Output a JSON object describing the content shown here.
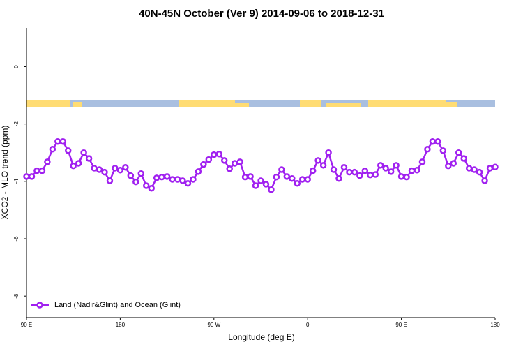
{
  "chart_data": {
    "type": "line",
    "title": "40N-45N October (Ver 9)   2014-09-06 to 2018-12-31",
    "x_label": "Longitude (deg E)",
    "y_label": "XCO2 - MLO trend (ppm)",
    "x": [
      90,
      95,
      100,
      105,
      110,
      115,
      120,
      125,
      130,
      135,
      140,
      145,
      150,
      155,
      160,
      165,
      170,
      175,
      180,
      185,
      190,
      195,
      200,
      205,
      210,
      215,
      220,
      225,
      230,
      235,
      240,
      245,
      250,
      255,
      260,
      265,
      270,
      275,
      280,
      285,
      290,
      295,
      300,
      305,
      310,
      315,
      320,
      325,
      330,
      335,
      340,
      345,
      350,
      355,
      360,
      365,
      370,
      375,
      380,
      385,
      390,
      395,
      400,
      405,
      410,
      415,
      420,
      425,
      430,
      435,
      440,
      445,
      450,
      455,
      460,
      465,
      470,
      475,
      480,
      485,
      490,
      495,
      500,
      505,
      510,
      515,
      520,
      525,
      530,
      535,
      540
    ],
    "series": [
      {
        "name": "Land (Nadir&Glint) and Ocean (Glint)",
        "color": "#a020f0",
        "values": [
          -3.83,
          -3.83,
          -3.63,
          -3.63,
          -3.32,
          -2.88,
          -2.61,
          -2.61,
          -2.93,
          -3.46,
          -3.37,
          -3.0,
          -3.2,
          -3.54,
          -3.59,
          -3.68,
          -3.98,
          -3.54,
          -3.61,
          -3.51,
          -3.8,
          -4.02,
          -3.73,
          -4.15,
          -4.24,
          -3.88,
          -3.85,
          -3.83,
          -3.93,
          -3.93,
          -3.98,
          -4.07,
          -3.93,
          -3.66,
          -3.41,
          -3.24,
          -3.07,
          -3.05,
          -3.27,
          -3.56,
          -3.37,
          -3.32,
          -3.85,
          -3.83,
          -4.15,
          -3.98,
          -4.1,
          -4.29,
          -3.85,
          -3.59,
          -3.83,
          -3.9,
          -4.07,
          -3.93,
          -3.93,
          -3.63,
          -3.27,
          -3.44,
          -3.0,
          -3.59,
          -3.9,
          -3.51,
          -3.68,
          -3.68,
          -3.8,
          -3.63,
          -3.78,
          -3.76,
          -3.44,
          -3.54,
          -3.66,
          -3.44,
          -3.83,
          -3.85,
          -3.63,
          -3.61,
          -3.32,
          -2.88,
          -2.61,
          -2.61,
          -2.93,
          -3.46,
          -3.37,
          -3.0,
          -3.2,
          -3.54,
          -3.59,
          -3.68,
          -3.98,
          -3.54,
          -3.5
        ]
      }
    ],
    "xlim": [
      90,
      540
    ],
    "xticks": [
      {
        "value": 90,
        "label": "90 E"
      },
      180,
      {
        "value": 270,
        "label": "90 W"
      },
      {
        "value": 360,
        "label": "0"
      },
      {
        "value": 450,
        "label": "90 E"
      },
      {
        "value": 540,
        "label": "180"
      }
    ],
    "ylim": [
      -8.75,
      1.35
    ],
    "yticks": [
      -8,
      -6,
      -4,
      -2,
      0
    ],
    "legend": "bottomleft"
  }
}
